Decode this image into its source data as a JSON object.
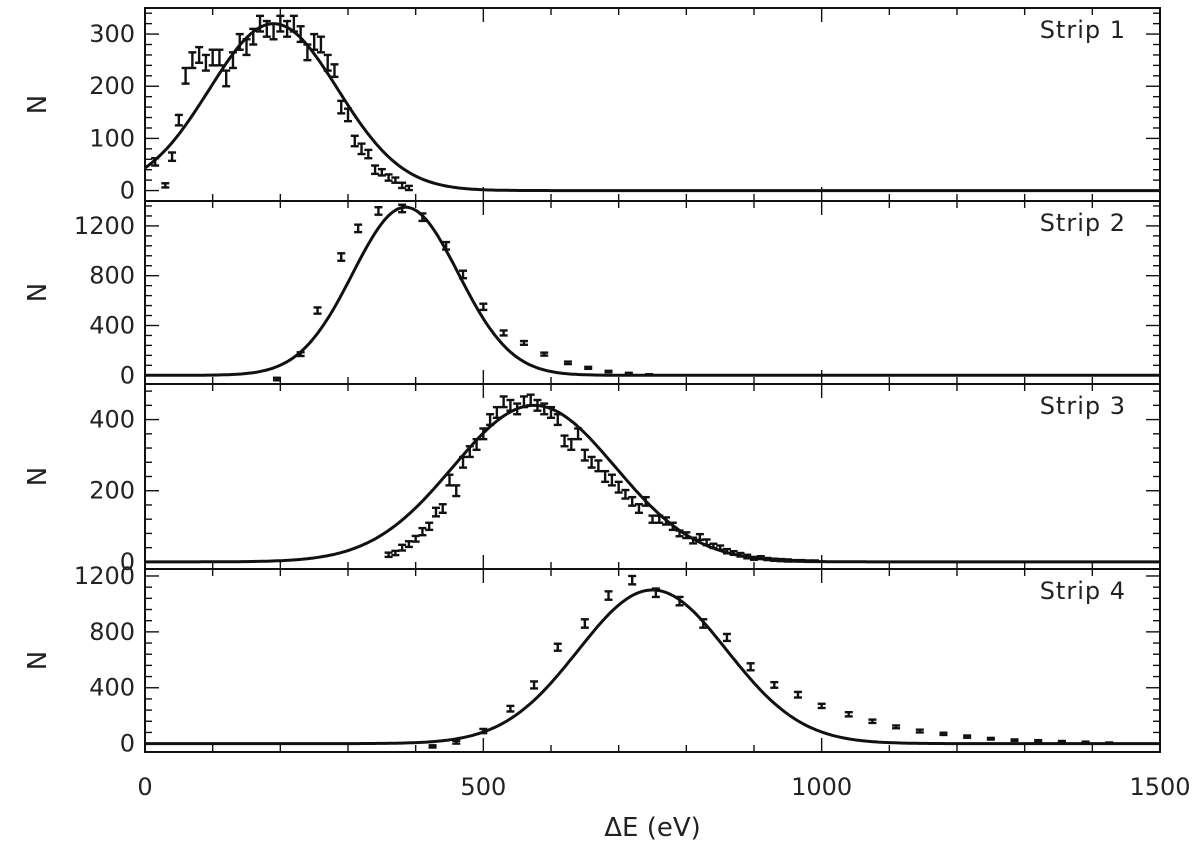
{
  "chart_data": {
    "type": "scatter",
    "xlabel": "ΔE (eV)",
    "x_ticks": [
      "0",
      "500",
      "1000",
      "1500"
    ],
    "xlim": [
      0,
      1500
    ],
    "grid": false,
    "panels": [
      {
        "label": "Strip 1",
        "ylabel": "N",
        "ylim": [
          -20,
          350
        ],
        "y_ticks": [
          0,
          100,
          200,
          300
        ],
        "fit": {
          "amplitude": 320,
          "mean": 190,
          "sigma": 95
        },
        "points": [
          {
            "x": 15,
            "y": 55,
            "err": 7
          },
          {
            "x": 30,
            "y": 10,
            "err": 4
          },
          {
            "x": 40,
            "y": 65,
            "err": 8
          },
          {
            "x": 50,
            "y": 135,
            "err": 10
          },
          {
            "x": 60,
            "y": 220,
            "err": 15
          },
          {
            "x": 70,
            "y": 250,
            "err": 15
          },
          {
            "x": 80,
            "y": 260,
            "err": 15
          },
          {
            "x": 90,
            "y": 245,
            "err": 15
          },
          {
            "x": 100,
            "y": 255,
            "err": 15
          },
          {
            "x": 110,
            "y": 255,
            "err": 15
          },
          {
            "x": 120,
            "y": 215,
            "err": 15
          },
          {
            "x": 130,
            "y": 250,
            "err": 15
          },
          {
            "x": 140,
            "y": 285,
            "err": 15
          },
          {
            "x": 150,
            "y": 275,
            "err": 15
          },
          {
            "x": 160,
            "y": 295,
            "err": 15
          },
          {
            "x": 170,
            "y": 320,
            "err": 15
          },
          {
            "x": 180,
            "y": 310,
            "err": 15
          },
          {
            "x": 190,
            "y": 305,
            "err": 15
          },
          {
            "x": 200,
            "y": 320,
            "err": 15
          },
          {
            "x": 210,
            "y": 310,
            "err": 15
          },
          {
            "x": 220,
            "y": 320,
            "err": 15
          },
          {
            "x": 230,
            "y": 300,
            "err": 15
          },
          {
            "x": 240,
            "y": 265,
            "err": 15
          },
          {
            "x": 250,
            "y": 285,
            "err": 15
          },
          {
            "x": 260,
            "y": 280,
            "err": 15
          },
          {
            "x": 270,
            "y": 245,
            "err": 15
          },
          {
            "x": 280,
            "y": 230,
            "err": 12
          },
          {
            "x": 290,
            "y": 160,
            "err": 12
          },
          {
            "x": 300,
            "y": 145,
            "err": 12
          },
          {
            "x": 310,
            "y": 95,
            "err": 10
          },
          {
            "x": 320,
            "y": 80,
            "err": 10
          },
          {
            "x": 330,
            "y": 70,
            "err": 8
          },
          {
            "x": 340,
            "y": 40,
            "err": 8
          },
          {
            "x": 350,
            "y": 35,
            "err": 6
          },
          {
            "x": 360,
            "y": 25,
            "err": 6
          },
          {
            "x": 370,
            "y": 20,
            "err": 5
          },
          {
            "x": 380,
            "y": 10,
            "err": 5
          },
          {
            "x": 390,
            "y": 5,
            "err": 4
          }
        ]
      },
      {
        "label": "Strip 2",
        "ylabel": "N",
        "ylim": [
          -70,
          1400
        ],
        "y_ticks": [
          0,
          400,
          800,
          1200
        ],
        "fit": {
          "amplitude": 1350,
          "mean": 385,
          "sigma": 78
        },
        "points": [
          {
            "x": 195,
            "y": -30,
            "err": 10
          },
          {
            "x": 230,
            "y": 170,
            "err": 15
          },
          {
            "x": 255,
            "y": 520,
            "err": 25
          },
          {
            "x": 290,
            "y": 950,
            "err": 30
          },
          {
            "x": 315,
            "y": 1180,
            "err": 30
          },
          {
            "x": 345,
            "y": 1320,
            "err": 30
          },
          {
            "x": 380,
            "y": 1340,
            "err": 30
          },
          {
            "x": 410,
            "y": 1270,
            "err": 30
          },
          {
            "x": 445,
            "y": 1040,
            "err": 30
          },
          {
            "x": 470,
            "y": 810,
            "err": 30
          },
          {
            "x": 500,
            "y": 550,
            "err": 25
          },
          {
            "x": 530,
            "y": 340,
            "err": 20
          },
          {
            "x": 560,
            "y": 260,
            "err": 15
          },
          {
            "x": 590,
            "y": 170,
            "err": 12
          },
          {
            "x": 625,
            "y": 100,
            "err": 10
          },
          {
            "x": 655,
            "y": 60,
            "err": 8
          },
          {
            "x": 685,
            "y": 30,
            "err": 6
          },
          {
            "x": 715,
            "y": 15,
            "err": 5
          },
          {
            "x": 745,
            "y": 5,
            "err": 4
          }
        ]
      },
      {
        "label": "Strip 3",
        "ylabel": "N",
        "ylim": [
          -20,
          500
        ],
        "y_ticks": [
          0,
          200,
          400
        ],
        "fit": {
          "amplitude": 440,
          "mean": 575,
          "sigma": 120
        },
        "points": [
          {
            "x": 360,
            "y": 20,
            "err": 6
          },
          {
            "x": 370,
            "y": 25,
            "err": 6
          },
          {
            "x": 380,
            "y": 40,
            "err": 8
          },
          {
            "x": 390,
            "y": 50,
            "err": 8
          },
          {
            "x": 400,
            "y": 65,
            "err": 8
          },
          {
            "x": 410,
            "y": 85,
            "err": 10
          },
          {
            "x": 420,
            "y": 100,
            "err": 10
          },
          {
            "x": 430,
            "y": 140,
            "err": 12
          },
          {
            "x": 440,
            "y": 150,
            "err": 12
          },
          {
            "x": 450,
            "y": 230,
            "err": 15
          },
          {
            "x": 460,
            "y": 200,
            "err": 15
          },
          {
            "x": 470,
            "y": 280,
            "err": 15
          },
          {
            "x": 480,
            "y": 310,
            "err": 15
          },
          {
            "x": 490,
            "y": 330,
            "err": 15
          },
          {
            "x": 500,
            "y": 360,
            "err": 15
          },
          {
            "x": 510,
            "y": 400,
            "err": 15
          },
          {
            "x": 520,
            "y": 420,
            "err": 15
          },
          {
            "x": 530,
            "y": 450,
            "err": 15
          },
          {
            "x": 540,
            "y": 440,
            "err": 15
          },
          {
            "x": 550,
            "y": 430,
            "err": 15
          },
          {
            "x": 560,
            "y": 450,
            "err": 15
          },
          {
            "x": 570,
            "y": 455,
            "err": 15
          },
          {
            "x": 580,
            "y": 440,
            "err": 15
          },
          {
            "x": 590,
            "y": 430,
            "err": 15
          },
          {
            "x": 600,
            "y": 420,
            "err": 15
          },
          {
            "x": 610,
            "y": 400,
            "err": 15
          },
          {
            "x": 620,
            "y": 340,
            "err": 15
          },
          {
            "x": 630,
            "y": 330,
            "err": 15
          },
          {
            "x": 640,
            "y": 360,
            "err": 15
          },
          {
            "x": 650,
            "y": 300,
            "err": 15
          },
          {
            "x": 660,
            "y": 280,
            "err": 15
          },
          {
            "x": 670,
            "y": 270,
            "err": 15
          },
          {
            "x": 680,
            "y": 240,
            "err": 15
          },
          {
            "x": 690,
            "y": 230,
            "err": 15
          },
          {
            "x": 700,
            "y": 210,
            "err": 15
          },
          {
            "x": 710,
            "y": 190,
            "err": 12
          },
          {
            "x": 720,
            "y": 170,
            "err": 12
          },
          {
            "x": 730,
            "y": 150,
            "err": 12
          },
          {
            "x": 740,
            "y": 170,
            "err": 12
          },
          {
            "x": 750,
            "y": 120,
            "err": 10
          },
          {
            "x": 760,
            "y": 120,
            "err": 10
          },
          {
            "x": 770,
            "y": 115,
            "err": 10
          },
          {
            "x": 780,
            "y": 100,
            "err": 10
          },
          {
            "x": 790,
            "y": 80,
            "err": 8
          },
          {
            "x": 800,
            "y": 75,
            "err": 8
          },
          {
            "x": 810,
            "y": 60,
            "err": 8
          },
          {
            "x": 820,
            "y": 70,
            "err": 8
          },
          {
            "x": 830,
            "y": 55,
            "err": 8
          },
          {
            "x": 840,
            "y": 45,
            "err": 6
          },
          {
            "x": 850,
            "y": 40,
            "err": 6
          },
          {
            "x": 860,
            "y": 30,
            "err": 6
          },
          {
            "x": 870,
            "y": 25,
            "err": 5
          },
          {
            "x": 880,
            "y": 20,
            "err": 5
          },
          {
            "x": 890,
            "y": 15,
            "err": 5
          },
          {
            "x": 900,
            "y": 10,
            "err": 4
          },
          {
            "x": 910,
            "y": 12,
            "err": 4
          },
          {
            "x": 920,
            "y": 8,
            "err": 3
          },
          {
            "x": 930,
            "y": 6,
            "err": 3
          },
          {
            "x": 940,
            "y": 5,
            "err": 3
          },
          {
            "x": 950,
            "y": 4,
            "err": 3
          },
          {
            "x": 960,
            "y": 3,
            "err": 2
          },
          {
            "x": 970,
            "y": 3,
            "err": 2
          },
          {
            "x": 980,
            "y": 2,
            "err": 2
          },
          {
            "x": 990,
            "y": 2,
            "err": 2
          }
        ]
      },
      {
        "label": "Strip 4",
        "ylabel": "N",
        "ylim": [
          -60,
          1250
        ],
        "y_ticks": [
          0,
          400,
          800,
          1200
        ],
        "fit": {
          "amplitude": 1100,
          "mean": 750,
          "sigma": 110
        },
        "points": [
          {
            "x": 425,
            "y": -20,
            "err": 8
          },
          {
            "x": 460,
            "y": 10,
            "err": 10
          },
          {
            "x": 500,
            "y": 90,
            "err": 15
          },
          {
            "x": 540,
            "y": 250,
            "err": 20
          },
          {
            "x": 575,
            "y": 420,
            "err": 25
          },
          {
            "x": 610,
            "y": 690,
            "err": 25
          },
          {
            "x": 650,
            "y": 860,
            "err": 30
          },
          {
            "x": 685,
            "y": 1060,
            "err": 30
          },
          {
            "x": 720,
            "y": 1170,
            "err": 30
          },
          {
            "x": 755,
            "y": 1080,
            "err": 30
          },
          {
            "x": 790,
            "y": 1020,
            "err": 30
          },
          {
            "x": 825,
            "y": 860,
            "err": 30
          },
          {
            "x": 860,
            "y": 760,
            "err": 25
          },
          {
            "x": 895,
            "y": 550,
            "err": 25
          },
          {
            "x": 930,
            "y": 420,
            "err": 20
          },
          {
            "x": 965,
            "y": 350,
            "err": 20
          },
          {
            "x": 1000,
            "y": 270,
            "err": 15
          },
          {
            "x": 1040,
            "y": 210,
            "err": 15
          },
          {
            "x": 1075,
            "y": 160,
            "err": 12
          },
          {
            "x": 1110,
            "y": 120,
            "err": 10
          },
          {
            "x": 1145,
            "y": 90,
            "err": 10
          },
          {
            "x": 1180,
            "y": 70,
            "err": 8
          },
          {
            "x": 1215,
            "y": 50,
            "err": 8
          },
          {
            "x": 1250,
            "y": 35,
            "err": 6
          },
          {
            "x": 1285,
            "y": 25,
            "err": 5
          },
          {
            "x": 1320,
            "y": 20,
            "err": 5
          },
          {
            "x": 1355,
            "y": 15,
            "err": 4
          },
          {
            "x": 1390,
            "y": 10,
            "err": 4
          },
          {
            "x": 1425,
            "y": 5,
            "err": 3
          }
        ]
      }
    ]
  }
}
